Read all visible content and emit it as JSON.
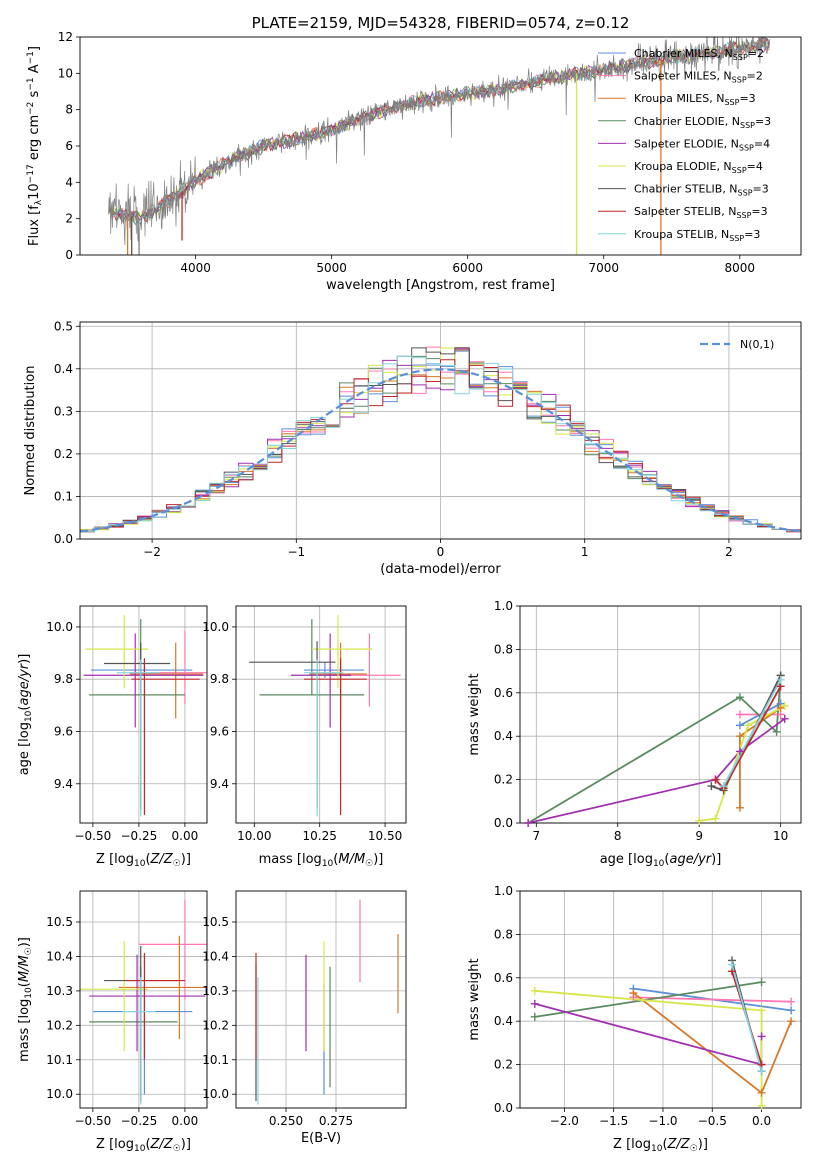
{
  "colors": {
    "Chabrier MILES": "#5b8fd8",
    "Salpeter MILES": "#ff77b4",
    "Kroupa MILES": "#d9782b",
    "Chabrier ELODIE": "#5a8a60",
    "Salpeter ELODIE": "#a030b0",
    "Kroupa ELODIE": "#d7e64a",
    "Chabrier STELIB": "#555555",
    "Salpeter STELIB": "#c0282c",
    "Kroupa STELIB": "#86d4e0",
    "data": "#808080",
    "gaussian": "#5b8fd8"
  },
  "chart_data": [
    {
      "type": "line",
      "panel": "spectrum",
      "title": "PLATE=2159, MJD=54328, FIBERID=0574, z=0.12",
      "xlabel": "wavelength [Angstrom, rest frame]",
      "ylabel": "Flux [fλ10⁻¹⁷ erg cm⁻² s⁻¹ A⁻¹]",
      "xlim": [
        3150,
        8450
      ],
      "ylim": [
        0,
        12
      ],
      "xticks": [
        4000,
        5000,
        6000,
        7000,
        8000
      ],
      "yticks": [
        0,
        2,
        4,
        6,
        8,
        10,
        12
      ],
      "legend": "upper-right",
      "continuum_x": [
        3400,
        3600,
        3800,
        3900,
        4000,
        4300,
        4500,
        4800,
        5000,
        5300,
        5600,
        6000,
        6300,
        6600,
        7000,
        7300,
        7500,
        7800,
        8000,
        8200
      ],
      "continuum_y": [
        2.3,
        2.0,
        3.0,
        3.5,
        4.1,
        5.4,
        6.0,
        6.5,
        6.9,
        7.8,
        8.4,
        8.9,
        9.2,
        9.7,
        10.2,
        10.6,
        10.9,
        11.2,
        11.4,
        11.6
      ],
      "spikes": [
        {
          "series": "Kroupa ELODIE",
          "x": 6800,
          "to": 0
        },
        {
          "series": "Kroupa MILES",
          "x": 7420,
          "to": 0
        },
        {
          "series": "Kroupa MILES",
          "x": 3500,
          "to": 0
        },
        {
          "series": "Salpeter STELIB",
          "x": 3900,
          "to": 0.8
        },
        {
          "series": "Chabrier STELIB",
          "x": 3530,
          "to": 0
        }
      ],
      "series": [
        {
          "name": "Chabrier MILES, N_SSP=2",
          "label": "Chabrier MILES",
          "sub": "SSP",
          "value": "=2"
        },
        {
          "name": "Salpeter MILES, N_SSP=2",
          "label": "Salpeter MILES",
          "sub": "SSP",
          "value": "=2"
        },
        {
          "name": "Kroupa MILES, N_SSP=3",
          "label": "Kroupa MILES",
          "sub": "SSP",
          "value": "=3"
        },
        {
          "name": "Chabrier ELODIE, N_SSP=3",
          "label": "Chabrier ELODIE",
          "sub": "SSP",
          "value": "=3"
        },
        {
          "name": "Salpeter ELODIE, N_SSP=4",
          "label": "Salpeter ELODIE",
          "sub": "SSP",
          "value": "=4"
        },
        {
          "name": "Kroupa ELODIE, N_SSP=4",
          "label": "Kroupa ELODIE",
          "sub": "SSP",
          "value": "=4"
        },
        {
          "name": "Chabrier STELIB, N_SSP=3",
          "label": "Chabrier STELIB",
          "sub": "SSP",
          "value": "=3"
        },
        {
          "name": "Salpeter STELIB, N_SSP=3",
          "label": "Salpeter STELIB",
          "sub": "SSP",
          "value": "=3"
        },
        {
          "name": "Kroupa STELIB, N_SSP=3",
          "label": "Kroupa STELIB",
          "sub": "SSP",
          "value": "=3"
        }
      ]
    },
    {
      "type": "line",
      "panel": "residuals",
      "xlabel": "(data-model)/error",
      "ylabel": "Normed distribution",
      "xlim": [
        -2.5,
        2.5
      ],
      "ylim": [
        0,
        0.51
      ],
      "xticks": [
        -2,
        -1,
        0,
        1,
        2
      ],
      "yticks": [
        0.0,
        0.1,
        0.2,
        0.3,
        0.4,
        0.5
      ],
      "grid": true,
      "legend": "upper-right",
      "gaussian_label": "N(0,1)",
      "bin_width": 0.1
    },
    {
      "type": "scatter",
      "panel": "age-vs-Z",
      "xlabel": "Z [log10(Z/Z☉)]",
      "ylabel": "age [log10(age/yr)]",
      "xlim": [
        -0.57,
        0.12
      ],
      "ylim": [
        9.25,
        10.08
      ],
      "xticks": [
        -0.5,
        -0.25,
        0.0
      ],
      "yticks": [
        9.4,
        9.6,
        9.8,
        10.0
      ],
      "grid": true,
      "points": [
        {
          "series": "Chabrier MILES",
          "x": -0.22,
          "xerr": [
            0.29,
            0.26
          ],
          "y": 9.835,
          "yerr": [
            0.03,
            0.03
          ]
        },
        {
          "series": "Salpeter MILES",
          "x": 0.0,
          "xerr": [
            0.3,
            0.12
          ],
          "y": 9.825,
          "yerr": [
            0.12,
            0.16
          ]
        },
        {
          "series": "Kroupa MILES",
          "x": -0.05,
          "xerr": [
            0.25,
            0.15
          ],
          "y": 9.82,
          "yerr": [
            0.17,
            0.12
          ]
        },
        {
          "series": "Chabrier ELODIE",
          "x": -0.24,
          "xerr": [
            0.28,
            0.24
          ],
          "y": 9.74,
          "yerr": [
            0.0,
            0.29
          ]
        },
        {
          "series": "Salpeter ELODIE",
          "x": -0.27,
          "xerr": [
            0.28,
            0.37
          ],
          "y": 9.815,
          "yerr": [
            0.2,
            0.16
          ]
        },
        {
          "series": "Kroupa ELODIE",
          "x": -0.33,
          "xerr": [
            0.21,
            0.13
          ],
          "y": 9.915,
          "yerr": [
            0.15,
            0.13
          ]
        },
        {
          "series": "Chabrier STELIB",
          "x": -0.24,
          "xerr": [
            0.2,
            0.16
          ],
          "y": 9.86,
          "yerr": [
            0.56,
            0.08
          ]
        },
        {
          "series": "Salpeter STELIB",
          "x": -0.22,
          "xerr": [
            0.07,
            0.3
          ],
          "y": 9.8,
          "yerr": [
            0.52,
            0.08
          ]
        },
        {
          "series": "Kroupa STELIB",
          "x": -0.24,
          "xerr": [
            0.13,
            0.1
          ],
          "y": 9.825,
          "yerr": [
            0.55,
            0.05
          ]
        }
      ]
    },
    {
      "type": "scatter",
      "panel": "age-vs-mass",
      "xlabel": "mass [log10(M/M☉)]",
      "ylabel": "",
      "xlim": [
        9.93,
        10.58
      ],
      "ylim": [
        9.25,
        10.08
      ],
      "xticks": [
        10.0,
        10.25,
        10.5
      ],
      "yticks": [
        9.4,
        9.6,
        9.8,
        10.0
      ],
      "grid": true,
      "points": [
        {
          "series": "Chabrier MILES",
          "x": 10.27,
          "xerr": [
            0.08,
            0.15
          ],
          "y": 9.835,
          "yerr": [
            0.03,
            0.03
          ]
        },
        {
          "series": "Salpeter MILES",
          "x": 10.44,
          "xerr": [
            0.14,
            0.12
          ],
          "y": 9.815,
          "yerr": [
            0.12,
            0.16
          ]
        },
        {
          "series": "Kroupa MILES",
          "x": 10.33,
          "xerr": [
            0.12,
            0.1
          ],
          "y": 9.82,
          "yerr": [
            0.17,
            0.12
          ]
        },
        {
          "series": "Chabrier ELODIE",
          "x": 10.22,
          "xerr": [
            0.2,
            0.2
          ],
          "y": 9.74,
          "yerr": [
            0.0,
            0.29
          ]
        },
        {
          "series": "Salpeter ELODIE",
          "x": 10.29,
          "xerr": [
            0.15,
            0.08
          ],
          "y": 9.815,
          "yerr": [
            0.2,
            0.16
          ]
        },
        {
          "series": "Kroupa ELODIE",
          "x": 10.32,
          "xerr": [
            0.1,
            0.13
          ],
          "y": 9.915,
          "yerr": [
            0.15,
            0.13
          ]
        },
        {
          "series": "Chabrier STELIB",
          "x": 10.24,
          "xerr": [
            0.26,
            0.07
          ],
          "y": 9.865,
          "yerr": [
            0.56,
            0.08
          ]
        },
        {
          "series": "Salpeter STELIB",
          "x": 10.33,
          "xerr": [
            0.14,
            0.1
          ],
          "y": 9.8,
          "yerr": [
            0.52,
            0.08
          ]
        },
        {
          "series": "Kroupa STELIB",
          "x": 10.24,
          "xerr": [
            0.05,
            0.1
          ],
          "y": 9.825,
          "yerr": [
            0.55,
            0.05
          ]
        }
      ]
    },
    {
      "type": "line",
      "panel": "massweight-vs-age",
      "xlabel": "age [log10(age/yr)]",
      "ylabel": "mass weight",
      "xlim": [
        6.8,
        10.25
      ],
      "ylim": [
        0,
        1
      ],
      "xticks": [
        7,
        8,
        9,
        10
      ],
      "yticks": [
        0.0,
        0.2,
        0.4,
        0.6,
        0.8,
        1.0
      ],
      "grid": true,
      "series": [
        {
          "name": "Chabrier MILES",
          "x": [
            9.5,
            10.0
          ],
          "y": [
            0.45,
            0.55
          ]
        },
        {
          "name": "Salpeter MILES",
          "x": [
            9.5,
            10.0
          ],
          "y": [
            0.5,
            0.5
          ]
        },
        {
          "name": "Kroupa MILES",
          "x": [
            9.5,
            9.5,
            10.0
          ],
          "y": [
            0.07,
            0.4,
            0.53
          ]
        },
        {
          "name": "Chabrier ELODIE",
          "x": [
            6.9,
            9.5,
            9.95,
            10.0
          ],
          "y": [
            0.0,
            0.58,
            0.42,
            0.68
          ]
        },
        {
          "name": "Salpeter ELODIE",
          "x": [
            6.9,
            9.2,
            9.5,
            10.05
          ],
          "y": [
            0.0,
            0.2,
            0.33,
            0.48
          ]
        },
        {
          "name": "Kroupa ELODIE",
          "x": [
            9.0,
            9.2,
            9.6,
            10.05
          ],
          "y": [
            0.01,
            0.02,
            0.45,
            0.54
          ]
        },
        {
          "name": "Chabrier STELIB",
          "x": [
            9.15,
            9.3,
            10.0
          ],
          "y": [
            0.17,
            0.15,
            0.68
          ]
        },
        {
          "name": "Salpeter STELIB",
          "x": [
            9.2,
            9.3,
            10.0
          ],
          "y": [
            0.2,
            0.16,
            0.63
          ]
        },
        {
          "name": "Kroupa STELIB",
          "x": [
            9.3,
            10.0
          ],
          "y": [
            0.17,
            0.66
          ]
        }
      ]
    },
    {
      "type": "scatter",
      "panel": "mass-vs-Z",
      "xlabel": "Z [log10(Z/Z☉)]",
      "ylabel": "mass [log10(M/M☉)]",
      "xlim": [
        -0.57,
        0.12
      ],
      "ylim": [
        9.96,
        10.59
      ],
      "xticks": [
        -0.5,
        -0.25,
        0.0
      ],
      "yticks": [
        10.0,
        10.1,
        10.2,
        10.3,
        10.4,
        10.5
      ],
      "grid": true,
      "points": [
        {
          "series": "Chabrier MILES",
          "x": -0.22,
          "xerr": [
            0.28,
            0.26
          ],
          "y": 10.24,
          "yerr": [
            0.24,
            0.08
          ]
        },
        {
          "series": "Salpeter MILES",
          "x": 0.0,
          "xerr": [
            0.25,
            0.12
          ],
          "y": 10.435,
          "yerr": [
            0.16,
            0.13
          ]
        },
        {
          "series": "Kroupa MILES",
          "x": -0.03,
          "xerr": [
            0.33,
            0.15
          ],
          "y": 10.31,
          "yerr": [
            0.15,
            0.15
          ]
        },
        {
          "series": "Chabrier ELODIE",
          "x": -0.24,
          "xerr": [
            0.28,
            0.2
          ],
          "y": 10.21,
          "yerr": [
            0.2,
            0.16
          ]
        },
        {
          "series": "Salpeter ELODIE",
          "x": -0.26,
          "xerr": [
            0.26,
            0.37
          ],
          "y": 10.285,
          "yerr": [
            0.16,
            0.12
          ]
        },
        {
          "series": "Kroupa ELODIE",
          "x": -0.33,
          "xerr": [
            0.25,
            0.13
          ],
          "y": 10.305,
          "yerr": [
            0.18,
            0.14
          ]
        },
        {
          "series": "Chabrier STELIB",
          "x": -0.24,
          "xerr": [
            0.2,
            0.2
          ],
          "y": 10.33,
          "yerr": [
            0.35,
            0.1
          ]
        },
        {
          "series": "Salpeter STELIB",
          "x": -0.22,
          "xerr": [
            0.1,
            0.22
          ],
          "y": 10.33,
          "yerr": [
            0.23,
            0.08
          ]
        },
        {
          "series": "Kroupa STELIB",
          "x": -0.24,
          "xerr": [
            0.1,
            0.08
          ],
          "y": 10.24,
          "yerr": [
            0.27,
            0.1
          ]
        }
      ]
    },
    {
      "type": "scatter",
      "panel": "mass-vs-EBV",
      "xlabel": "E(B-V)",
      "ylabel": "",
      "xlim": [
        0.225,
        0.31
      ],
      "ylim": [
        9.96,
        10.59
      ],
      "xticks": [
        0.25,
        0.275
      ],
      "xtick_labels": [
        "0.250",
        "0.275"
      ],
      "yticks": [
        10.0,
        10.1,
        10.2,
        10.3,
        10.4,
        10.5
      ],
      "grid": true,
      "points": [
        {
          "series": "Chabrier MILES",
          "x": 0.269,
          "y": 10.24,
          "yerr": [
            0.24,
            0.08
          ]
        },
        {
          "series": "Salpeter MILES",
          "x": 0.287,
          "y": 10.435,
          "yerr": [
            0.11,
            0.13
          ]
        },
        {
          "series": "Kroupa MILES",
          "x": 0.306,
          "y": 10.345,
          "yerr": [
            0.11,
            0.12
          ]
        },
        {
          "series": "Chabrier ELODIE",
          "x": 0.272,
          "y": 10.21,
          "yerr": [
            0.19,
            0.16
          ]
        },
        {
          "series": "Salpeter ELODIE",
          "x": 0.26,
          "y": 10.285,
          "yerr": [
            0.16,
            0.12
          ]
        },
        {
          "series": "Kroupa ELODIE",
          "x": 0.269,
          "y": 10.305,
          "yerr": [
            0.18,
            0.14
          ]
        },
        {
          "series": "Chabrier STELIB",
          "x": 0.235,
          "y": 10.33,
          "yerr": [
            0.35,
            0.05
          ]
        },
        {
          "series": "Salpeter STELIB",
          "x": 0.235,
          "y": 10.33,
          "yerr": [
            0.23,
            0.08
          ]
        },
        {
          "series": "Kroupa STELIB",
          "x": 0.236,
          "y": 10.24,
          "yerr": [
            0.27,
            0.1
          ]
        }
      ]
    },
    {
      "type": "line",
      "panel": "massweight-vs-Z",
      "xlabel": "Z [log10(Z/Z☉)]",
      "ylabel": "mass weight",
      "xlim": [
        -2.45,
        0.4
      ],
      "ylim": [
        0,
        1
      ],
      "xticks": [
        -2.0,
        -1.5,
        -1.0,
        -0.5,
        0.0
      ],
      "yticks": [
        0.0,
        0.2,
        0.4,
        0.6,
        0.8,
        1.0
      ],
      "grid": true,
      "series": [
        {
          "name": "Chabrier MILES",
          "x": [
            -1.3,
            0.3
          ],
          "y": [
            0.55,
            0.45
          ]
        },
        {
          "name": "Salpeter MILES",
          "x": [
            -1.3,
            0.3
          ],
          "y": [
            0.51,
            0.49
          ]
        },
        {
          "name": "Kroupa MILES",
          "x": [
            -1.3,
            0.0,
            0.3
          ],
          "y": [
            0.53,
            0.07,
            0.4
          ]
        },
        {
          "name": "Chabrier ELODIE",
          "x": [
            -2.3,
            0.0
          ],
          "y": [
            0.42,
            0.58
          ]
        },
        {
          "name": "Salpeter ELODIE",
          "x": [
            -2.3,
            0.0,
            0.0
          ],
          "y": [
            0.48,
            0.2,
            0.33
          ]
        },
        {
          "name": "Kroupa ELODIE",
          "x": [
            -2.3,
            0.0,
            0.0
          ],
          "y": [
            0.54,
            0.45,
            0.01
          ]
        },
        {
          "name": "Chabrier STELIB",
          "x": [
            -0.3,
            0.0
          ],
          "y": [
            0.68,
            0.17
          ]
        },
        {
          "name": "Salpeter STELIB",
          "x": [
            -0.3,
            0.0
          ],
          "y": [
            0.63,
            0.2
          ]
        },
        {
          "name": "Kroupa STELIB",
          "x": [
            -0.3,
            0.0
          ],
          "y": [
            0.66,
            0.17
          ]
        }
      ]
    }
  ]
}
